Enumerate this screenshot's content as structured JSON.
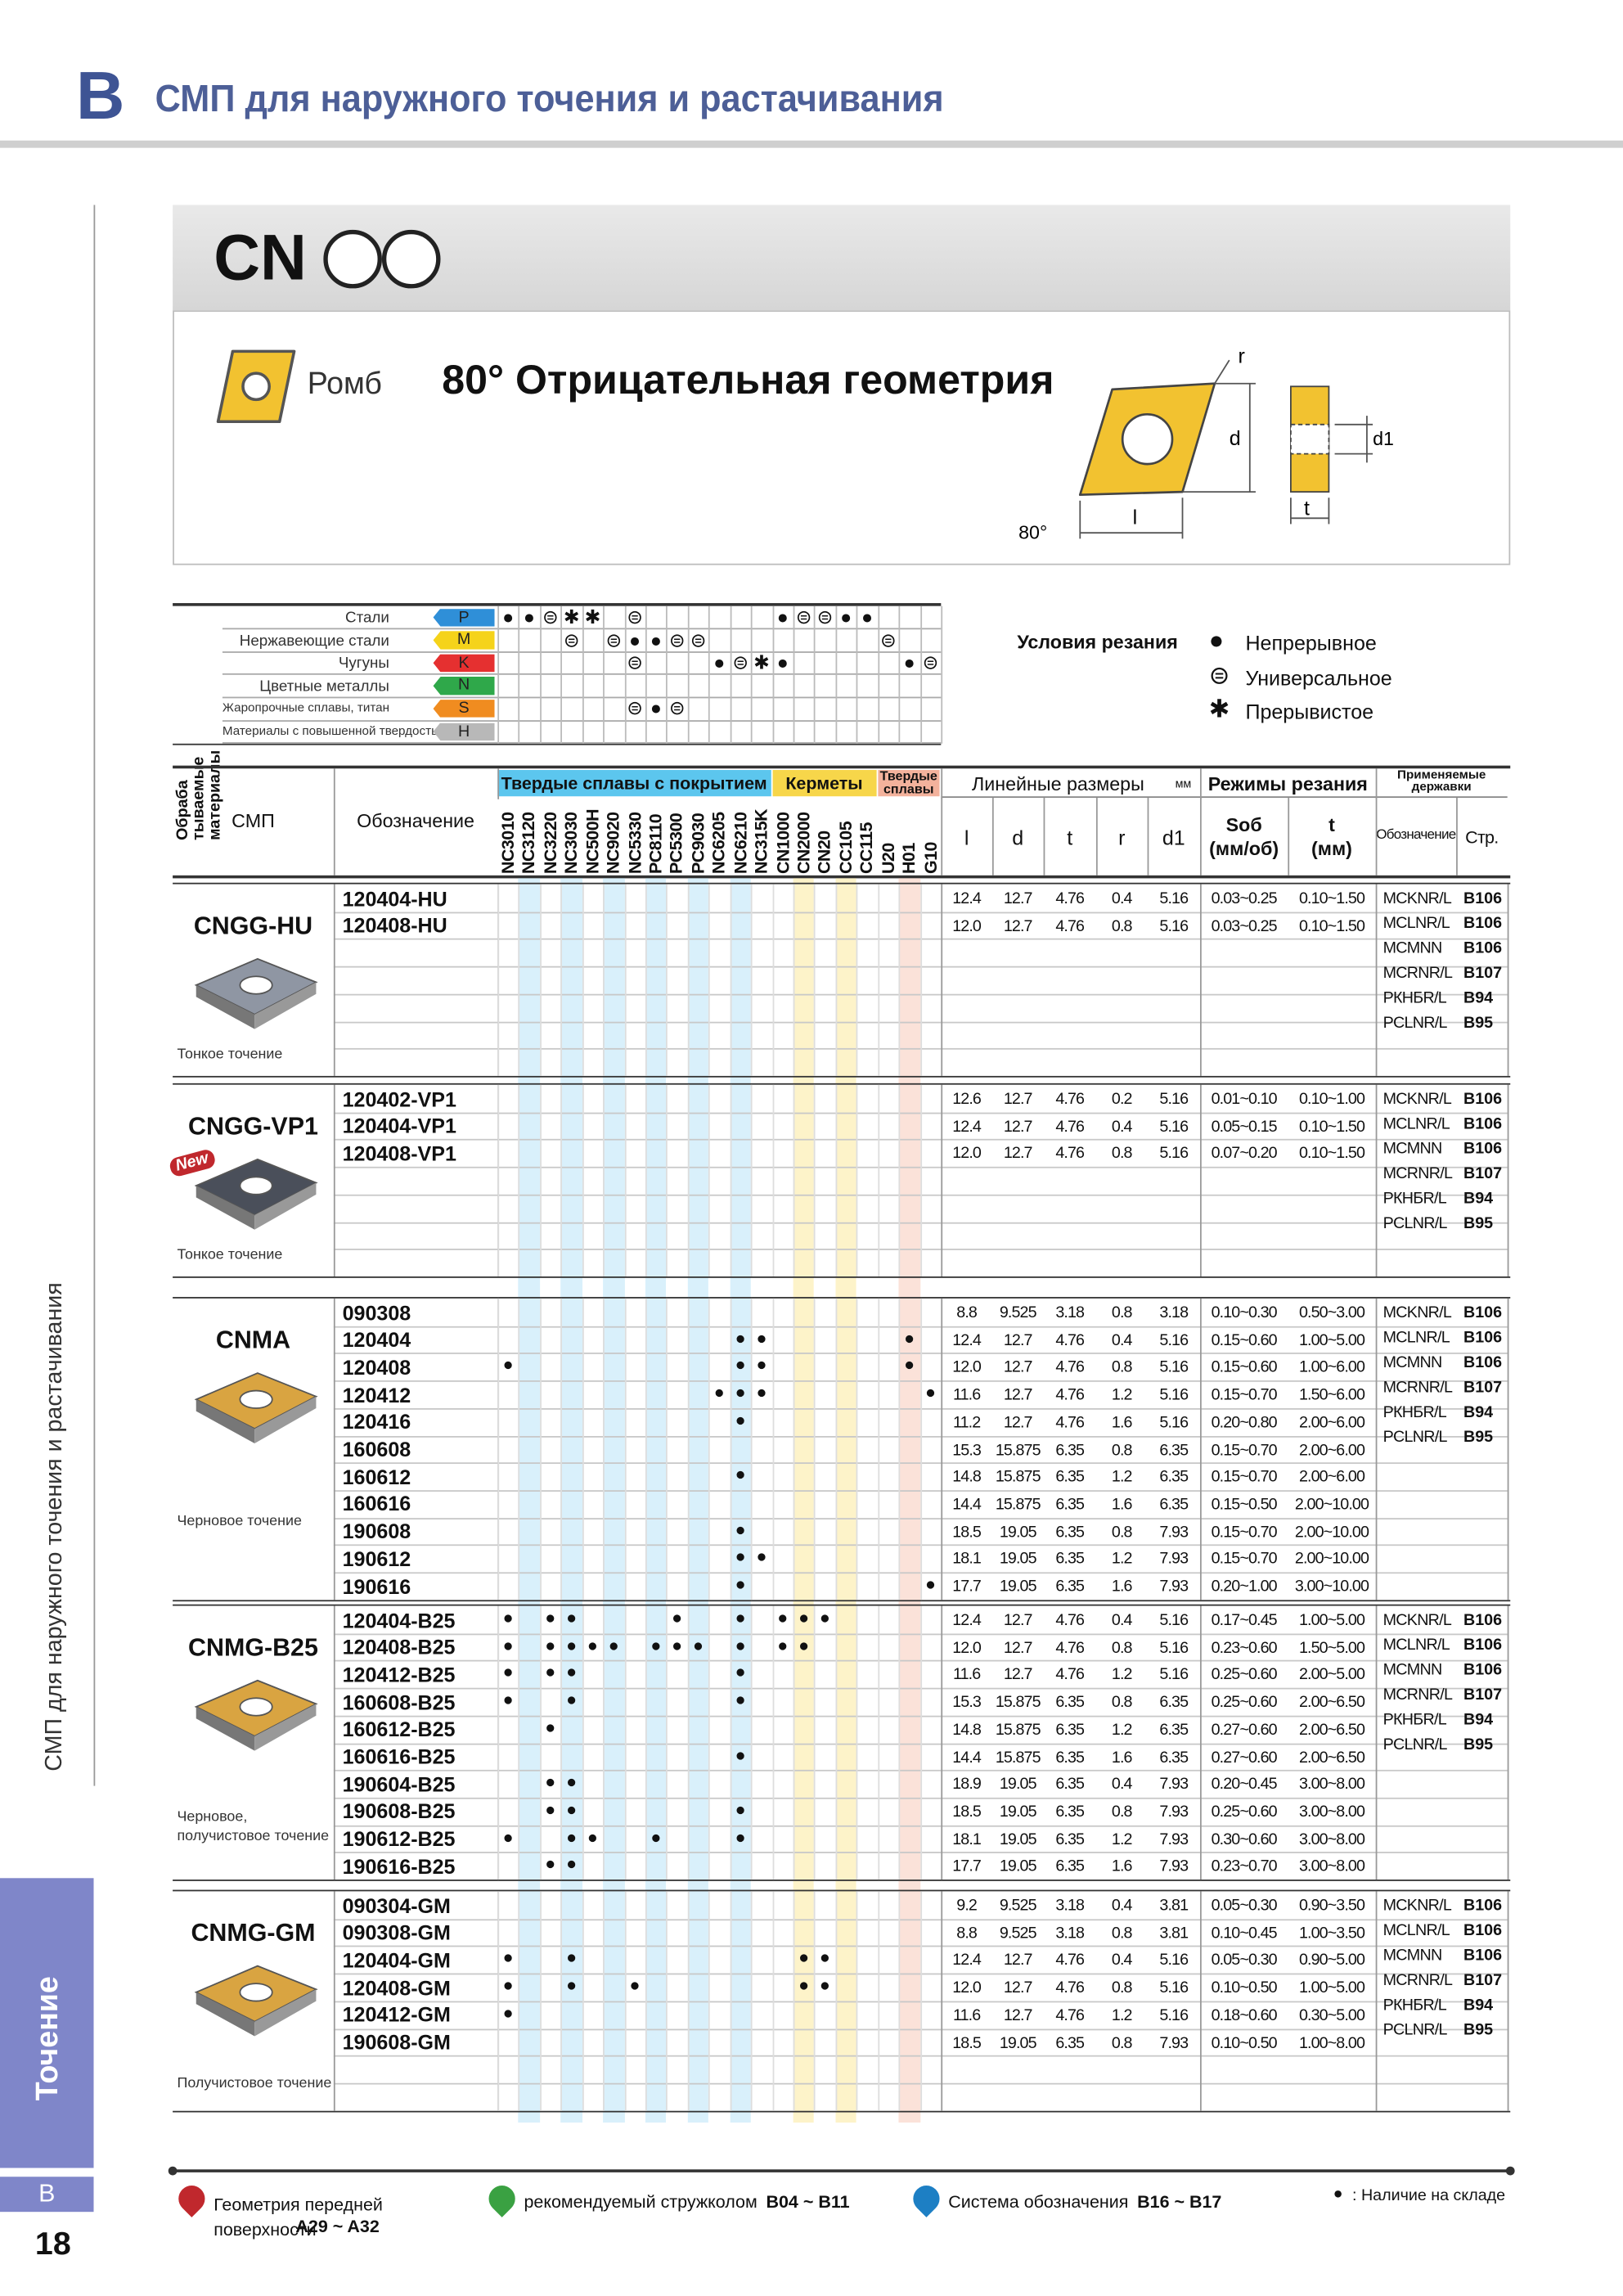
{
  "header": {
    "letter": "B",
    "title": "СМП для наружного точения и растачивания"
  },
  "side": {
    "section_title": "СМП для наружного точения и растачивания",
    "tab": "Точение",
    "letter": "B",
    "page": "18"
  },
  "product": {
    "code": "CN",
    "shape": "Ромб",
    "geometry": "80° Отрицательная геометрия",
    "diagram": {
      "r": "r",
      "d": "d",
      "d1": "d1",
      "l": "l",
      "t": "t",
      "angle": "80°"
    }
  },
  "materials": {
    "label": [
      "Обраба",
      "тываемые",
      "материалы"
    ],
    "rows": [
      {
        "name": "Стали",
        "code": "P",
        "color": "#2f8fd8",
        "marks": {
          "0": "●",
          "1": "●",
          "2": "⊜",
          "3": "✱",
          "4": "✱",
          "6": "⊜",
          "13": "●",
          "14": "⊜",
          "15": "⊜",
          "16": "●",
          "17": "●"
        }
      },
      {
        "name": "Нержавеющие стали",
        "code": "M",
        "color": "#f5d31a",
        "marks": {
          "3": "⊜",
          "5": "⊜",
          "6": "●",
          "7": "●",
          "8": "⊜",
          "9": "⊜",
          "18": "⊜"
        }
      },
      {
        "name": "Чугуны",
        "code": "K",
        "color": "#e53030",
        "marks": {
          "6": "⊜",
          "10": "●",
          "11": "⊜",
          "12": "✱",
          "13": "●",
          "19": "●",
          "20": "⊜"
        }
      },
      {
        "name": "Цветные металлы",
        "code": "N",
        "color": "#2fa84a",
        "marks": {}
      },
      {
        "name": "Жаропрочные сплавы, титан",
        "code": "S",
        "color": "#f08c20",
        "marks": {
          "6": "⊜",
          "7": "●",
          "8": "⊜"
        }
      },
      {
        "name": "Материалы с повышенной твердостью",
        "code": "H",
        "color": "#b8b8b8",
        "marks": {}
      }
    ]
  },
  "conditions": {
    "title": "Условия резания",
    "items": [
      {
        "symbol": "●",
        "label": "Непрерывное"
      },
      {
        "symbol": "⊜",
        "label": "Универсальное"
      },
      {
        "symbol": "✱",
        "label": "Прерывистое"
      }
    ]
  },
  "table": {
    "headers": {
      "insert": "СМП",
      "designation": "Обозначение",
      "groups": [
        {
          "name": "Твердые сплавы с покрытием",
          "color": "#5cc6ee",
          "stripe": "#d9f0fb",
          "grades": [
            "NC3010",
            "NC3120",
            "NC3220",
            "NC3030",
            "NC500H",
            "NC9020",
            "NC5330",
            "PC8110",
            "PC5300",
            "PC9030",
            "NC6205",
            "NC6210",
            "NC315K"
          ]
        },
        {
          "name": "Керметы",
          "color": "#f7d64a",
          "stripe": "#fdf3c9",
          "grades": [
            "CN1000",
            "CN2000",
            "CN20",
            "CC105",
            "CC115"
          ]
        },
        {
          "name": "Твердые сплавы",
          "color": "#f3b29c",
          "stripe": "#fbe2d9",
          "grades": [
            "U20",
            "H01",
            "G10"
          ]
        }
      ],
      "dimensions": {
        "title": "Линейные размеры",
        "unit": "мм",
        "columns": [
          "l",
          "d",
          "t",
          "r",
          "d1"
        ]
      },
      "cutting": {
        "title": "Режимы резания",
        "columns": [
          [
            "Sоб",
            "(мм/об)"
          ],
          [
            "t",
            "(мм)"
          ]
        ]
      },
      "holders": {
        "title": "Применяемые державки",
        "columns": [
          "Обозначение",
          "Стр."
        ]
      }
    },
    "sections": [
      {
        "name": "CNGG-HU",
        "caption": "Тонкое точение",
        "color": "#8f96a3",
        "rows": [
          {
            "designation": "120404-HU",
            "stock": {},
            "l": "12.4",
            "d": "12.7",
            "t": "4.76",
            "r": "0.4",
            "d1": "5.16",
            "feed": "0.03~0.25",
            "depth": "0.10~1.50"
          },
          {
            "designation": "120408-HU",
            "stock": {},
            "l": "12.0",
            "d": "12.7",
            "t": "4.76",
            "r": "0.8",
            "d1": "5.16",
            "feed": "0.03~0.25",
            "depth": "0.10~1.50"
          }
        ],
        "holders": [
          {
            "code": "MCKNR/L",
            "page": "B106"
          },
          {
            "code": "MCLNR/L",
            "page": "B106"
          },
          {
            "code": "MCMNN",
            "page": "B106"
          },
          {
            "code": "MCRNR/L",
            "page": "B107"
          },
          {
            "code": "РКНБR/L",
            "page": "B94"
          },
          {
            "code": "PCLNR/L",
            "page": "B95"
          }
        ]
      },
      {
        "name": "CNGG-VP1",
        "badge": "New",
        "caption": "Тонкое точение",
        "color": "#4a4f5a",
        "rows": [
          {
            "designation": "120402-VP1",
            "stock": {},
            "l": "12.6",
            "d": "12.7",
            "t": "4.76",
            "r": "0.2",
            "d1": "5.16",
            "feed": "0.01~0.10",
            "depth": "0.10~1.00"
          },
          {
            "designation": "120404-VP1",
            "stock": {},
            "l": "12.4",
            "d": "12.7",
            "t": "4.76",
            "r": "0.4",
            "d1": "5.16",
            "feed": "0.05~0.15",
            "depth": "0.10~1.50"
          },
          {
            "designation": "120408-VP1",
            "stock": {},
            "l": "12.0",
            "d": "12.7",
            "t": "4.76",
            "r": "0.8",
            "d1": "5.16",
            "feed": "0.07~0.20",
            "depth": "0.10~1.50"
          }
        ],
        "holders": [
          {
            "code": "MCKNR/L",
            "page": "B106"
          },
          {
            "code": "MCLNR/L",
            "page": "B106"
          },
          {
            "code": "MCMNN",
            "page": "B106"
          },
          {
            "code": "MCRNR/L",
            "page": "B107"
          },
          {
            "code": "РКНБR/L",
            "page": "B94"
          },
          {
            "code": "PCLNR/L",
            "page": "B95"
          }
        ]
      },
      {
        "name": "CNMA",
        "caption": "Черновое точение",
        "color": "#d9a441",
        "rows": [
          {
            "designation": "090308",
            "stock": {},
            "l": "8.8",
            "d": "9.525",
            "t": "3.18",
            "r": "0.8",
            "d1": "3.18",
            "feed": "0.10~0.30",
            "depth": "0.50~3.00"
          },
          {
            "designation": "120404",
            "stock": {
              "11": "●",
              "12": "●",
              "19": "●"
            },
            "l": "12.4",
            "d": "12.7",
            "t": "4.76",
            "r": "0.4",
            "d1": "5.16",
            "feed": "0.15~0.60",
            "depth": "1.00~5.00"
          },
          {
            "designation": "120408",
            "stock": {
              "0": "●",
              "11": "●",
              "12": "●",
              "19": "●"
            },
            "l": "12.0",
            "d": "12.7",
            "t": "4.76",
            "r": "0.8",
            "d1": "5.16",
            "feed": "0.15~0.60",
            "depth": "1.00~6.00"
          },
          {
            "designation": "120412",
            "stock": {
              "10": "●",
              "11": "●",
              "12": "●",
              "20": "●"
            },
            "l": "11.6",
            "d": "12.7",
            "t": "4.76",
            "r": "1.2",
            "d1": "5.16",
            "feed": "0.15~0.70",
            "depth": "1.50~6.00"
          },
          {
            "designation": "120416",
            "stock": {
              "11": "●"
            },
            "l": "11.2",
            "d": "12.7",
            "t": "4.76",
            "r": "1.6",
            "d1": "5.16",
            "feed": "0.20~0.80",
            "depth": "2.00~6.00"
          },
          {
            "designation": "160608",
            "stock": {},
            "l": "15.3",
            "d": "15.875",
            "t": "6.35",
            "r": "0.8",
            "d1": "6.35",
            "feed": "0.15~0.70",
            "depth": "2.00~6.00"
          },
          {
            "designation": "160612",
            "stock": {
              "11": "●"
            },
            "l": "14.8",
            "d": "15.875",
            "t": "6.35",
            "r": "1.2",
            "d1": "6.35",
            "feed": "0.15~0.70",
            "depth": "2.00~6.00"
          },
          {
            "designation": "160616",
            "stock": {},
            "l": "14.4",
            "d": "15.875",
            "t": "6.35",
            "r": "1.6",
            "d1": "6.35",
            "feed": "0.15~0.50",
            "depth": "2.00~10.00"
          },
          {
            "designation": "190608",
            "stock": {
              "11": "●"
            },
            "l": "18.5",
            "d": "19.05",
            "t": "6.35",
            "r": "0.8",
            "d1": "7.93",
            "feed": "0.15~0.70",
            "depth": "2.00~10.00"
          },
          {
            "designation": "190612",
            "stock": {
              "11": "●",
              "12": "●"
            },
            "l": "18.1",
            "d": "19.05",
            "t": "6.35",
            "r": "1.2",
            "d1": "7.93",
            "feed": "0.15~0.70",
            "depth": "2.00~10.00"
          },
          {
            "designation": "190616",
            "stock": {
              "11": "●",
              "20": "●"
            },
            "l": "17.7",
            "d": "19.05",
            "t": "6.35",
            "r": "1.6",
            "d1": "7.93",
            "feed": "0.20~1.00",
            "depth": "3.00~10.00"
          }
        ],
        "holders": [
          {
            "code": "MCKNR/L",
            "page": "B106"
          },
          {
            "code": "MCLNR/L",
            "page": "B106"
          },
          {
            "code": "MCMNN",
            "page": "B106"
          },
          {
            "code": "MCRNR/L",
            "page": "B107"
          },
          {
            "code": "РКНБR/L",
            "page": "B94"
          },
          {
            "code": "PCLNR/L",
            "page": "B95"
          }
        ]
      },
      {
        "name": "CNMG-B25",
        "caption": "Черновое, получистовое точение",
        "color": "#d9a441",
        "rows": [
          {
            "designation": "120404-B25",
            "stock": {
              "0": "●",
              "2": "●",
              "3": "●",
              "8": "●",
              "11": "●",
              "13": "●",
              "14": "●",
              "15": "●"
            },
            "l": "12.4",
            "d": "12.7",
            "t": "4.76",
            "r": "0.4",
            "d1": "5.16",
            "feed": "0.17~0.45",
            "depth": "1.00~5.00"
          },
          {
            "designation": "120408-B25",
            "stock": {
              "0": "●",
              "2": "●",
              "3": "●",
              "4": "●",
              "5": "●",
              "7": "●",
              "8": "●",
              "9": "●",
              "11": "●",
              "13": "●",
              "14": "●"
            },
            "l": "12.0",
            "d": "12.7",
            "t": "4.76",
            "r": "0.8",
            "d1": "5.16",
            "feed": "0.23~0.60",
            "depth": "1.50~5.00"
          },
          {
            "designation": "120412-B25",
            "stock": {
              "0": "●",
              "2": "●",
              "3": "●",
              "11": "●"
            },
            "l": "11.6",
            "d": "12.7",
            "t": "4.76",
            "r": "1.2",
            "d1": "5.16",
            "feed": "0.25~0.60",
            "depth": "2.00~5.00"
          },
          {
            "designation": "160608-B25",
            "stock": {
              "0": "●",
              "3": "●",
              "11": "●"
            },
            "l": "15.3",
            "d": "15.875",
            "t": "6.35",
            "r": "0.8",
            "d1": "6.35",
            "feed": "0.25~0.60",
            "depth": "2.00~6.50"
          },
          {
            "designation": "160612-B25",
            "stock": {
              "2": "●"
            },
            "l": "14.8",
            "d": "15.875",
            "t": "6.35",
            "r": "1.2",
            "d1": "6.35",
            "feed": "0.27~0.60",
            "depth": "2.00~6.50"
          },
          {
            "designation": "160616-B25",
            "stock": {
              "11": "●"
            },
            "l": "14.4",
            "d": "15.875",
            "t": "6.35",
            "r": "1.6",
            "d1": "6.35",
            "feed": "0.27~0.60",
            "depth": "2.00~6.50"
          },
          {
            "designation": "190604-B25",
            "stock": {
              "2": "●",
              "3": "●"
            },
            "l": "18.9",
            "d": "19.05",
            "t": "6.35",
            "r": "0.4",
            "d1": "7.93",
            "feed": "0.20~0.45",
            "depth": "3.00~8.00"
          },
          {
            "designation": "190608-B25",
            "stock": {
              "2": "●",
              "3": "●",
              "11": "●"
            },
            "l": "18.5",
            "d": "19.05",
            "t": "6.35",
            "r": "0.8",
            "d1": "7.93",
            "feed": "0.25~0.60",
            "depth": "3.00~8.00"
          },
          {
            "designation": "190612-B25",
            "stock": {
              "0": "●",
              "3": "●",
              "4": "●",
              "7": "●",
              "11": "●"
            },
            "l": "18.1",
            "d": "19.05",
            "t": "6.35",
            "r": "1.2",
            "d1": "7.93",
            "feed": "0.30~0.60",
            "depth": "3.00~8.00"
          },
          {
            "designation": "190616-B25",
            "stock": {
              "2": "●",
              "3": "●"
            },
            "l": "17.7",
            "d": "19.05",
            "t": "6.35",
            "r": "1.6",
            "d1": "7.93",
            "feed": "0.23~0.70",
            "depth": "3.00~8.00"
          }
        ],
        "holders": [
          {
            "code": "MCKNR/L",
            "page": "B106"
          },
          {
            "code": "MCLNR/L",
            "page": "B106"
          },
          {
            "code": "MCMNN",
            "page": "B106"
          },
          {
            "code": "MCRNR/L",
            "page": "B107"
          },
          {
            "code": "РКНБR/L",
            "page": "B94"
          },
          {
            "code": "PCLNR/L",
            "page": "B95"
          }
        ]
      },
      {
        "name": "CNMG-GM",
        "caption": "Получистовое точение",
        "color": "#d9a441",
        "rows": [
          {
            "designation": "090304-GM",
            "stock": {},
            "l": "9.2",
            "d": "9.525",
            "t": "3.18",
            "r": "0.4",
            "d1": "3.81",
            "feed": "0.05~0.30",
            "depth": "0.90~3.50"
          },
          {
            "designation": "090308-GM",
            "stock": {},
            "l": "8.8",
            "d": "9.525",
            "t": "3.18",
            "r": "0.8",
            "d1": "3.81",
            "feed": "0.10~0.45",
            "depth": "1.00~3.50"
          },
          {
            "designation": "120404-GM",
            "stock": {
              "0": "●",
              "3": "●",
              "14": "●",
              "15": "●"
            },
            "l": "12.4",
            "d": "12.7",
            "t": "4.76",
            "r": "0.4",
            "d1": "5.16",
            "feed": "0.05~0.30",
            "depth": "0.90~5.00"
          },
          {
            "designation": "120408-GM",
            "stock": {
              "0": "●",
              "3": "●",
              "6": "●",
              "14": "●",
              "15": "●"
            },
            "l": "12.0",
            "d": "12.7",
            "t": "4.76",
            "r": "0.8",
            "d1": "5.16",
            "feed": "0.10~0.50",
            "depth": "1.00~5.00"
          },
          {
            "designation": "120412-GM",
            "stock": {
              "0": "●"
            },
            "l": "11.6",
            "d": "12.7",
            "t": "4.76",
            "r": "1.2",
            "d1": "5.16",
            "feed": "0.18~0.60",
            "depth": "0.30~5.00"
          },
          {
            "designation": "190608-GM",
            "stock": {},
            "l": "18.5",
            "d": "19.05",
            "t": "6.35",
            "r": "0.8",
            "d1": "7.93",
            "feed": "0.10~0.50",
            "depth": "1.00~8.00"
          }
        ],
        "holders": [
          {
            "code": "MCKNR/L",
            "page": "B106"
          },
          {
            "code": "MCLNR/L",
            "page": "B106"
          },
          {
            "code": "MCMNN",
            "page": "B106"
          },
          {
            "code": "MCRNR/L",
            "page": "B107"
          },
          {
            "code": "РКНБR/L",
            "page": "B94"
          },
          {
            "code": "PCLNR/L",
            "page": "B95"
          }
        ]
      }
    ]
  },
  "footer": {
    "items": [
      {
        "text": "Геометрия передней поверхности",
        "ref": "A29 ~ A32",
        "color": "#c0282d"
      },
      {
        "text": "рекомендуемый стружколом",
        "ref": "B04 ~ B11",
        "color": "#3aa142"
      },
      {
        "text": "Система обозначения",
        "ref": "B16 ~ B17",
        "color": "#1d7fc4"
      }
    ],
    "stock": {
      "symbol": "●",
      "text": ": Наличие на складе"
    }
  }
}
